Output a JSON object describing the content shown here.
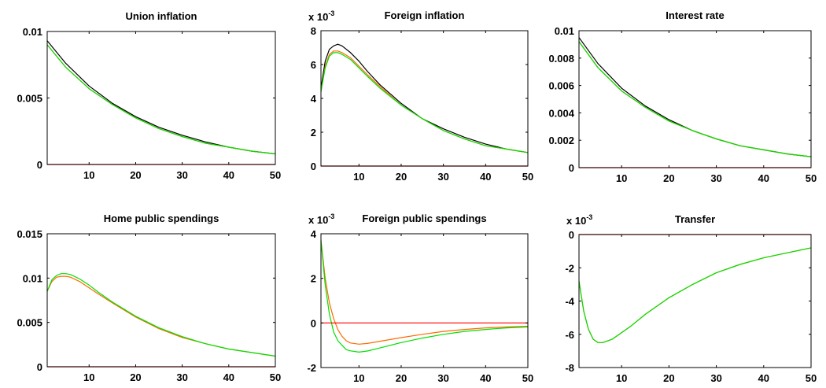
{
  "chart_data": [
    {
      "type": "line",
      "title": "Union inflation",
      "xlim": [
        1,
        50
      ],
      "ylim": [
        0,
        0.01
      ],
      "yticks": [
        0,
        0.005,
        0.01
      ],
      "ytick_labels": [
        "0",
        "0.005",
        "0.01"
      ],
      "xticks": [
        10,
        20,
        30,
        40,
        50
      ],
      "xtick_labels": [
        "10",
        "20",
        "30",
        "40",
        "50"
      ],
      "exponent_label": "",
      "series": [
        {
          "color": "#000000",
          "x": [
            1,
            5,
            10,
            15,
            20,
            25,
            30,
            35,
            40,
            45,
            50
          ],
          "y": [
            0.0093,
            0.0076,
            0.0059,
            0.0046,
            0.0036,
            0.0028,
            0.0022,
            0.0017,
            0.0013,
            0.001,
            0.0008
          ]
        },
        {
          "color": "#ff6a00",
          "x": [
            1,
            5,
            10,
            15,
            20,
            25,
            30,
            35,
            40,
            45,
            50
          ],
          "y": [
            0.009,
            0.0073,
            0.0057,
            0.0045,
            0.0035,
            0.0027,
            0.0021,
            0.0016,
            0.0013,
            0.001,
            0.0008
          ]
        },
        {
          "color": "#00e000",
          "x": [
            1,
            5,
            10,
            15,
            20,
            25,
            30,
            35,
            40,
            45,
            50
          ],
          "y": [
            0.009,
            0.0073,
            0.0057,
            0.0045,
            0.0035,
            0.0027,
            0.0021,
            0.0016,
            0.0013,
            0.001,
            0.0008
          ]
        },
        {
          "color": "#ff0000",
          "x": [
            1,
            50
          ],
          "y": [
            0,
            0
          ]
        }
      ]
    },
    {
      "type": "line",
      "title": "Foreign inflation",
      "xlim": [
        1,
        50
      ],
      "ylim": [
        0,
        0.008
      ],
      "yticks": [
        0,
        0.002,
        0.004,
        0.006,
        0.008
      ],
      "ytick_labels": [
        "0",
        "2",
        "4",
        "6",
        "8"
      ],
      "xticks": [
        10,
        20,
        30,
        40,
        50
      ],
      "xtick_labels": [
        "10",
        "20",
        "30",
        "40",
        "50"
      ],
      "exponent_label": "x 10",
      "exponent_power": "-3",
      "series": [
        {
          "color": "#000000",
          "x": [
            1,
            2,
            3,
            4,
            5,
            6,
            8,
            10,
            12,
            15,
            20,
            25,
            30,
            35,
            40,
            45,
            50
          ],
          "y": [
            0.0046,
            0.0062,
            0.0069,
            0.0071,
            0.0072,
            0.0071,
            0.0067,
            0.0062,
            0.0056,
            0.0048,
            0.0037,
            0.0028,
            0.0022,
            0.0017,
            0.0013,
            0.001,
            0.0008
          ]
        },
        {
          "color": "#ff6a00",
          "x": [
            1,
            2,
            3,
            4,
            5,
            6,
            8,
            10,
            12,
            15,
            20,
            25,
            30,
            35,
            40,
            45,
            50
          ],
          "y": [
            0.0044,
            0.0059,
            0.0066,
            0.0068,
            0.0068,
            0.0067,
            0.0064,
            0.0059,
            0.0054,
            0.0047,
            0.0036,
            0.0028,
            0.0021,
            0.0016,
            0.0012,
            0.001,
            0.0008
          ]
        },
        {
          "color": "#00e000",
          "x": [
            1,
            2,
            3,
            4,
            5,
            6,
            8,
            10,
            12,
            15,
            20,
            25,
            30,
            35,
            40,
            45,
            50
          ],
          "y": [
            0.0044,
            0.0058,
            0.0065,
            0.0067,
            0.0067,
            0.0066,
            0.0063,
            0.0058,
            0.0053,
            0.0046,
            0.0036,
            0.0028,
            0.0021,
            0.0016,
            0.0012,
            0.001,
            0.0008
          ]
        },
        {
          "color": "#ff0000",
          "x": [
            1,
            50
          ],
          "y": [
            0,
            0
          ]
        }
      ]
    },
    {
      "type": "line",
      "title": "Interest rate",
      "xlim": [
        1,
        50
      ],
      "ylim": [
        0,
        0.01
      ],
      "yticks": [
        0,
        0.002,
        0.004,
        0.006,
        0.008,
        0.01
      ],
      "ytick_labels": [
        "0",
        "0.002",
        "0.004",
        "0.006",
        "0.008",
        "0.01"
      ],
      "xticks": [
        10,
        20,
        30,
        40,
        50
      ],
      "xtick_labels": [
        "10",
        "20",
        "30",
        "40",
        "50"
      ],
      "exponent_label": "",
      "series": [
        {
          "color": "#000000",
          "x": [
            1,
            5,
            10,
            15,
            20,
            25,
            30,
            35,
            40,
            45,
            50
          ],
          "y": [
            0.0095,
            0.0076,
            0.0058,
            0.0045,
            0.0035,
            0.0027,
            0.0021,
            0.0016,
            0.0013,
            0.001,
            0.0008
          ]
        },
        {
          "color": "#ff6a00",
          "x": [
            1,
            5,
            10,
            15,
            20,
            25,
            30,
            35,
            40,
            45,
            50
          ],
          "y": [
            0.0092,
            0.0073,
            0.0056,
            0.0044,
            0.0034,
            0.0027,
            0.0021,
            0.0016,
            0.0013,
            0.001,
            0.0008
          ]
        },
        {
          "color": "#00e000",
          "x": [
            1,
            5,
            10,
            15,
            20,
            25,
            30,
            35,
            40,
            45,
            50
          ],
          "y": [
            0.0092,
            0.0073,
            0.0056,
            0.0044,
            0.0034,
            0.0027,
            0.0021,
            0.0016,
            0.0013,
            0.001,
            0.0008
          ]
        },
        {
          "color": "#ff0000",
          "x": [
            1,
            50
          ],
          "y": [
            0,
            0
          ]
        }
      ]
    },
    {
      "type": "line",
      "title": "Home public spendings",
      "xlim": [
        1,
        50
      ],
      "ylim": [
        0,
        0.015
      ],
      "yticks": [
        0,
        0.005,
        0.01,
        0.015
      ],
      "ytick_labels": [
        "0",
        "0.005",
        "0.01",
        "0.015"
      ],
      "xticks": [
        10,
        20,
        30,
        40,
        50
      ],
      "xtick_labels": [
        "10",
        "20",
        "30",
        "40",
        "50"
      ],
      "exponent_label": "",
      "series": [
        {
          "color": "#ff6a00",
          "x": [
            1,
            2,
            3,
            4,
            5,
            6,
            8,
            10,
            12,
            15,
            20,
            25,
            30,
            35,
            40,
            45,
            50
          ],
          "y": [
            0.0085,
            0.0096,
            0.0101,
            0.0102,
            0.0102,
            0.0101,
            0.0096,
            0.0089,
            0.0082,
            0.0072,
            0.0056,
            0.0043,
            0.0033,
            0.0026,
            0.002,
            0.0016,
            0.0012
          ]
        },
        {
          "color": "#00e000",
          "x": [
            1,
            2,
            3,
            4,
            5,
            6,
            8,
            10,
            12,
            15,
            20,
            25,
            30,
            35,
            40,
            45,
            50
          ],
          "y": [
            0.0085,
            0.0098,
            0.0103,
            0.0105,
            0.0105,
            0.0104,
            0.0099,
            0.0092,
            0.0084,
            0.0073,
            0.0057,
            0.0044,
            0.0034,
            0.0026,
            0.002,
            0.0016,
            0.0012
          ]
        },
        {
          "color": "#ff0000",
          "x": [
            1,
            50
          ],
          "y": [
            0,
            0
          ]
        }
      ]
    },
    {
      "type": "line",
      "title": "Foreign public spendings",
      "xlim": [
        1,
        50
      ],
      "ylim": [
        -0.002,
        0.004
      ],
      "yticks": [
        -0.002,
        0,
        0.002,
        0.004
      ],
      "ytick_labels": [
        "-2",
        "0",
        "2",
        "4"
      ],
      "xticks": [
        10,
        20,
        30,
        40,
        50
      ],
      "xtick_labels": [
        "10",
        "20",
        "30",
        "40",
        "50"
      ],
      "exponent_label": "x 10",
      "exponent_power": "-3",
      "series": [
        {
          "color": "#ff6a00",
          "x": [
            1,
            2,
            3,
            4,
            5,
            6,
            7,
            8,
            10,
            12,
            15,
            20,
            25,
            30,
            35,
            40,
            45,
            50
          ],
          "y": [
            0.0037,
            0.002,
            0.0009,
            0.0002,
            -0.0003,
            -0.0006,
            -0.0008,
            -0.0009,
            -0.00095,
            -0.00092,
            -0.00082,
            -0.00066,
            -0.00051,
            -0.00038,
            -0.00029,
            -0.00022,
            -0.00018,
            -0.00015
          ]
        },
        {
          "color": "#00e000",
          "x": [
            1,
            2,
            3,
            4,
            5,
            6,
            7,
            8,
            10,
            12,
            15,
            20,
            25,
            30,
            35,
            40,
            45,
            50
          ],
          "y": [
            0.0037,
            0.0017,
            0.0004,
            -0.0004,
            -0.0008,
            -0.001,
            -0.0012,
            -0.00125,
            -0.00131,
            -0.00126,
            -0.00112,
            -0.00088,
            -0.00068,
            -0.00051,
            -0.00038,
            -0.00029,
            -0.00022,
            -0.00018
          ]
        },
        {
          "color": "#ff0000",
          "x": [
            1,
            50
          ],
          "y": [
            0,
            0
          ]
        }
      ]
    },
    {
      "type": "line",
      "title": "Transfer",
      "xlim": [
        1,
        50
      ],
      "ylim": [
        -0.008,
        0
      ],
      "yticks": [
        -0.008,
        -0.006,
        -0.004,
        -0.002,
        0
      ],
      "ytick_labels": [
        "-8",
        "-6",
        "-4",
        "-2",
        "0"
      ],
      "xticks": [
        10,
        20,
        30,
        40,
        50
      ],
      "xtick_labels": [
        "10",
        "20",
        "30",
        "40",
        "50"
      ],
      "exponent_label": "x 10",
      "exponent_power": "-3",
      "series": [
        {
          "color": "#ff6a00",
          "x": [
            1,
            2,
            3,
            4,
            5,
            6,
            7,
            8,
            10,
            12,
            15,
            20,
            25,
            30,
            35,
            40,
            45,
            50
          ],
          "y": [
            -0.0028,
            -0.0046,
            -0.0057,
            -0.0063,
            -0.0065,
            -0.0065,
            -0.0064,
            -0.0063,
            -0.0059,
            -0.0055,
            -0.0048,
            -0.0038,
            -0.003,
            -0.0023,
            -0.0018,
            -0.0014,
            -0.0011,
            -0.0008
          ]
        },
        {
          "color": "#00e000",
          "x": [
            1,
            2,
            3,
            4,
            5,
            6,
            7,
            8,
            10,
            12,
            15,
            20,
            25,
            30,
            35,
            40,
            45,
            50
          ],
          "y": [
            -0.0028,
            -0.0046,
            -0.0057,
            -0.0063,
            -0.0065,
            -0.0065,
            -0.0064,
            -0.0063,
            -0.0059,
            -0.0055,
            -0.0048,
            -0.0038,
            -0.003,
            -0.0023,
            -0.0018,
            -0.0014,
            -0.0011,
            -0.0008
          ]
        },
        {
          "color": "#ff0000",
          "x": [
            1,
            50
          ],
          "y": [
            0,
            0
          ]
        }
      ]
    }
  ]
}
